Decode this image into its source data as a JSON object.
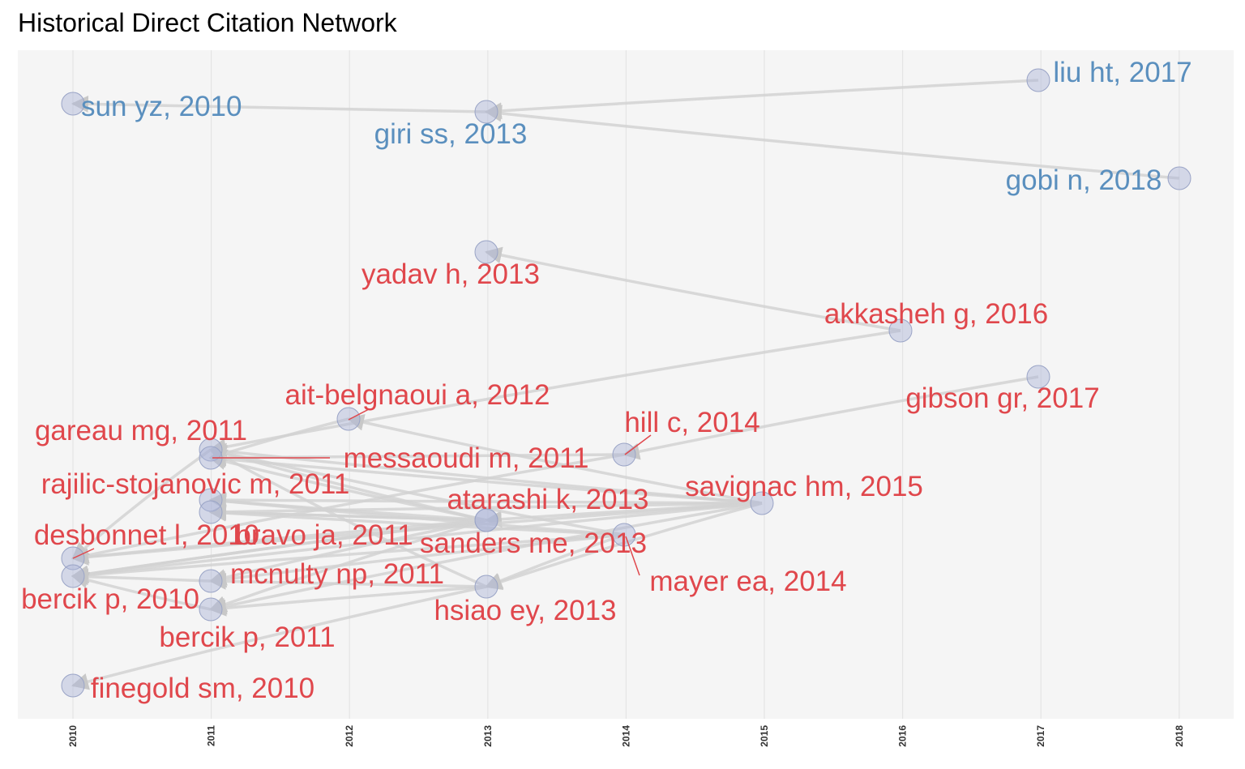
{
  "title": "Historical Direct Citation Network",
  "colors": {
    "panel_bg": "#f5f5f5",
    "grid": "#e4e4e4",
    "edge": "#d2d2d2",
    "node_fill": "#aab4d6",
    "node_stroke": "#9aa4c6",
    "cluster_blue": "#5a8fbe",
    "cluster_red": "#e0474c"
  },
  "chart_data": {
    "type": "network",
    "x_axis": {
      "ticks": [
        2010,
        2011,
        2012,
        2013,
        2014,
        2015,
        2016,
        2017,
        2018
      ]
    },
    "nodes": [
      {
        "id": "sun_yz_2010",
        "label": "sun yz, 2010",
        "year": 2010,
        "cluster": "blue"
      },
      {
        "id": "giri_ss_2013",
        "label": "giri ss, 2013",
        "year": 2013,
        "cluster": "blue"
      },
      {
        "id": "liu_ht_2017",
        "label": "liu ht, 2017",
        "year": 2017,
        "cluster": "blue"
      },
      {
        "id": "gobi_n_2018",
        "label": "gobi n, 2018",
        "year": 2018,
        "cluster": "blue"
      },
      {
        "id": "yadav_h_2013",
        "label": "yadav h, 2013",
        "year": 2013,
        "cluster": "red"
      },
      {
        "id": "akkasheh_g_2016",
        "label": "akkasheh g, 2016",
        "year": 2016,
        "cluster": "red"
      },
      {
        "id": "gibson_gr_2017",
        "label": "gibson gr, 2017",
        "year": 2017,
        "cluster": "red"
      },
      {
        "id": "ait_belgnaoui_a_2012",
        "label": "ait-belgnaoui a, 2012",
        "year": 2012,
        "cluster": "red"
      },
      {
        "id": "hill_c_2014",
        "label": "hill c, 2014",
        "year": 2014,
        "cluster": "red"
      },
      {
        "id": "gareau_mg_2011",
        "label": "gareau mg, 2011",
        "year": 2011,
        "cluster": "red"
      },
      {
        "id": "messaoudi_m_2011",
        "label": "messaoudi m, 2011",
        "year": 2011,
        "cluster": "red"
      },
      {
        "id": "rajilic_stojanovic_m_2011",
        "label": "rajilic-stojanovic m, 2011",
        "year": 2011,
        "cluster": "red"
      },
      {
        "id": "savignac_hm_2015",
        "label": "savignac hm, 2015",
        "year": 2015,
        "cluster": "red"
      },
      {
        "id": "atarashi_k_2013",
        "label": "atarashi k, 2013",
        "year": 2013,
        "cluster": "red"
      },
      {
        "id": "desbonnet_l_2010",
        "label": "desbonnet l, 2010",
        "year": 2010,
        "cluster": "red"
      },
      {
        "id": "bravo_ja_2011",
        "label": "bravo ja, 2011",
        "year": 2011,
        "cluster": "red"
      },
      {
        "id": "sanders_me_2013",
        "label": "sanders me, 2013",
        "year": 2013,
        "cluster": "red"
      },
      {
        "id": "mayer_ea_2014",
        "label": "mayer ea, 2014",
        "year": 2014,
        "cluster": "red"
      },
      {
        "id": "mcnulty_np_2011",
        "label": "mcnulty np, 2011",
        "year": 2011,
        "cluster": "red"
      },
      {
        "id": "bercik_p_2010",
        "label": "bercik p, 2010",
        "year": 2010,
        "cluster": "red"
      },
      {
        "id": "hsiao_ey_2013",
        "label": "hsiao ey, 2013",
        "year": 2013,
        "cluster": "red"
      },
      {
        "id": "bercik_p_2011",
        "label": "bercik p, 2011",
        "year": 2011,
        "cluster": "red"
      },
      {
        "id": "finegold_sm_2010",
        "label": "finegold sm, 2010",
        "year": 2010,
        "cluster": "red"
      }
    ],
    "edges": [
      {
        "from": "giri_ss_2013",
        "to": "sun_yz_2010"
      },
      {
        "from": "liu_ht_2017",
        "to": "giri_ss_2013"
      },
      {
        "from": "gobi_n_2018",
        "to": "giri_ss_2013"
      },
      {
        "from": "akkasheh_g_2016",
        "to": "yadav_h_2013"
      },
      {
        "from": "akkasheh_g_2016",
        "to": "gareau_mg_2011"
      },
      {
        "from": "gibson_gr_2017",
        "to": "hill_c_2014"
      },
      {
        "from": "hill_c_2014",
        "to": "messaoudi_m_2011"
      },
      {
        "from": "hill_c_2014",
        "to": "desbonnet_l_2010"
      },
      {
        "from": "savignac_hm_2015",
        "to": "ait_belgnaoui_a_2012"
      },
      {
        "from": "savignac_hm_2015",
        "to": "gareau_mg_2011"
      },
      {
        "from": "savignac_hm_2015",
        "to": "messaoudi_m_2011"
      },
      {
        "from": "savignac_hm_2015",
        "to": "rajilic_stojanovic_m_2011"
      },
      {
        "from": "savignac_hm_2015",
        "to": "bravo_ja_2011"
      },
      {
        "from": "savignac_hm_2015",
        "to": "atarashi_k_2013"
      },
      {
        "from": "savignac_hm_2015",
        "to": "desbonnet_l_2010"
      },
      {
        "from": "savignac_hm_2015",
        "to": "bercik_p_2010"
      },
      {
        "from": "savignac_hm_2015",
        "to": "bercik_p_2011"
      },
      {
        "from": "savignac_hm_2015",
        "to": "hsiao_ey_2013"
      },
      {
        "from": "ait_belgnaoui_a_2012",
        "to": "messaoudi_m_2011"
      },
      {
        "from": "atarashi_k_2013",
        "to": "gareau_mg_2011"
      },
      {
        "from": "atarashi_k_2013",
        "to": "messaoudi_m_2011"
      },
      {
        "from": "atarashi_k_2013",
        "to": "rajilic_stojanovic_m_2011"
      },
      {
        "from": "atarashi_k_2013",
        "to": "bravo_ja_2011"
      },
      {
        "from": "atarashi_k_2013",
        "to": "desbonnet_l_2010"
      },
      {
        "from": "atarashi_k_2013",
        "to": "bercik_p_2010"
      },
      {
        "from": "atarashi_k_2013",
        "to": "mcnulty_np_2011"
      },
      {
        "from": "atarashi_k_2013",
        "to": "bercik_p_2011"
      },
      {
        "from": "sanders_me_2013",
        "to": "bercik_p_2010"
      },
      {
        "from": "sanders_me_2013",
        "to": "bravo_ja_2011"
      },
      {
        "from": "mayer_ea_2014",
        "to": "gareau_mg_2011"
      },
      {
        "from": "mayer_ea_2014",
        "to": "bravo_ja_2011"
      },
      {
        "from": "mayer_ea_2014",
        "to": "bercik_p_2010"
      },
      {
        "from": "mayer_ea_2014",
        "to": "hsiao_ey_2013"
      },
      {
        "from": "mayer_ea_2014",
        "to": "mcnulty_np_2011"
      },
      {
        "from": "mayer_ea_2014",
        "to": "rajilic_stojanovic_m_2011"
      },
      {
        "from": "hsiao_ey_2013",
        "to": "gareau_mg_2011"
      },
      {
        "from": "hsiao_ey_2013",
        "to": "bercik_p_2011"
      },
      {
        "from": "hsiao_ey_2013",
        "to": "mcnulty_np_2011"
      },
      {
        "from": "hsiao_ey_2013",
        "to": "finegold_sm_2010"
      },
      {
        "from": "bercik_p_2011",
        "to": "bercik_p_2010"
      },
      {
        "from": "mcnulty_np_2011",
        "to": "bercik_p_2010"
      },
      {
        "from": "gareau_mg_2011",
        "to": "desbonnet_l_2010"
      }
    ]
  }
}
